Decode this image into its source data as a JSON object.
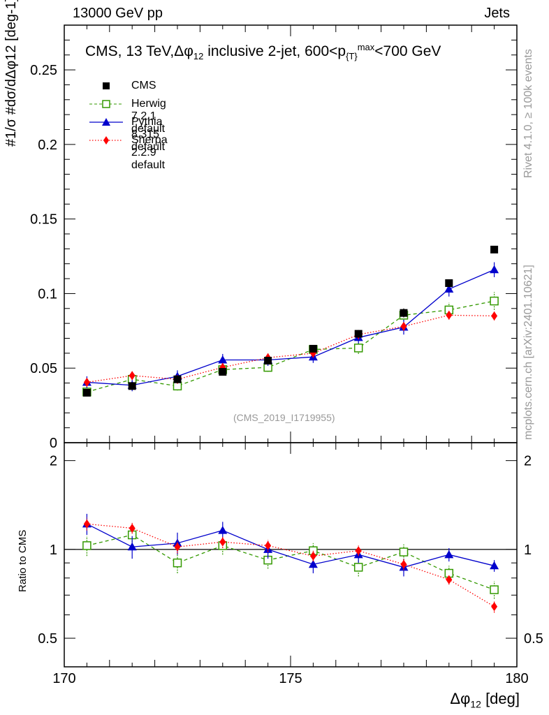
{
  "header": {
    "left": "13000 GeV pp",
    "right": "Jets"
  },
  "side_text": {
    "rivet": "Rivet 4.1.0, ≥ 100k events",
    "mcplots": "mcplots.cern.ch [arXiv:2401.10621]"
  },
  "watermark": "(CMS_2019_I1719955)",
  "chart_data": {
    "type": "scatter",
    "title": "CMS, 13 TeV,Δφ12 inclusive 2-jet, 600<p{T}max<700 GeV",
    "title_parts": {
      "a": "CMS, 13 TeV,Δφ",
      "a_sub": "12",
      "b": " inclusive 2-jet, 600<p",
      "b_sub": "{T}",
      "b_sup": "max",
      "c": "<700 GeV"
    },
    "xlabel": "Δφ12 [deg]",
    "xlabel_parts": {
      "main": "Δφ",
      "sub": "12",
      "unit": " [deg]"
    },
    "ylabel": "#1/σ #dσ/dΔφ12 [deg-1]",
    "ylabel_ratio": "Ratio to CMS",
    "xlim": [
      170,
      180
    ],
    "ylim": [
      0,
      0.28
    ],
    "ratio_ylim": [
      0.4,
      2.3
    ],
    "x_ticks": [
      "170",
      "175",
      "180"
    ],
    "y_ticks": [
      "0",
      "0.05",
      "0.1",
      "0.15",
      "0.2",
      "0.25"
    ],
    "ratio_y_ticks": [
      "0.5",
      "1",
      "2"
    ],
    "x": [
      170.5,
      171.5,
      172.5,
      173.5,
      174.5,
      175.5,
      176.5,
      177.5,
      178.5,
      179.5
    ],
    "series": [
      {
        "name": "CMS",
        "color": "#000000",
        "marker": "square",
        "line": "none",
        "values": [
          0.0335,
          0.038,
          0.0425,
          0.0475,
          0.055,
          0.063,
          0.073,
          0.087,
          0.107,
          0.1295
        ],
        "errors": [
          0.002,
          0.0015,
          0.0015,
          0.002,
          0.002,
          0.002,
          0.0025,
          0.003,
          0.0025,
          0.002
        ],
        "ratio": [
          1.0,
          1.0,
          1.0,
          1.0,
          1.0,
          1.0,
          1.0,
          1.0,
          1.0,
          1.0
        ],
        "ratio_errors": [
          0,
          0,
          0,
          0,
          0,
          0,
          0,
          0,
          0,
          0
        ]
      },
      {
        "name": "Herwig 7.2.1 default",
        "color": "#339900",
        "marker": "open-square",
        "line": "dashed",
        "values": [
          0.034,
          0.0425,
          0.038,
          0.049,
          0.0505,
          0.0625,
          0.0635,
          0.0855,
          0.089,
          0.095
        ],
        "errors": [
          0.003,
          0.003,
          0.003,
          0.003,
          0.003,
          0.003,
          0.004,
          0.004,
          0.005,
          0.006
        ],
        "ratio": [
          1.03,
          1.12,
          0.9,
          1.03,
          0.92,
          0.99,
          0.87,
          0.98,
          0.83,
          0.73
        ],
        "ratio_errors": [
          0.08,
          0.08,
          0.07,
          0.07,
          0.06,
          0.06,
          0.06,
          0.06,
          0.05,
          0.05
        ]
      },
      {
        "name": "Pythia 8.315 default",
        "color": "#0000cc",
        "marker": "triangle",
        "line": "solid",
        "values": [
          0.0405,
          0.0385,
          0.0445,
          0.0555,
          0.0555,
          0.0575,
          0.0705,
          0.0775,
          0.103,
          0.116
        ],
        "errors": [
          0.004,
          0.004,
          0.004,
          0.004,
          0.004,
          0.004,
          0.004,
          0.005,
          0.005,
          0.005
        ],
        "ratio": [
          1.22,
          1.02,
          1.05,
          1.16,
          1.0,
          0.89,
          0.96,
          0.87,
          0.96,
          0.88
        ],
        "ratio_errors": [
          0.1,
          0.09,
          0.09,
          0.08,
          0.07,
          0.06,
          0.06,
          0.06,
          0.05,
          0.04
        ]
      },
      {
        "name": "Sherpa 2.2.9 default",
        "color": "#ff0000",
        "marker": "diamond",
        "line": "dotted",
        "values": [
          0.0405,
          0.045,
          0.0425,
          0.0505,
          0.057,
          0.06,
          0.0725,
          0.078,
          0.0855,
          0.085
        ],
        "errors": [
          0.003,
          0.003,
          0.003,
          0.003,
          0.003,
          0.003,
          0.003,
          0.003,
          0.003,
          0.003
        ],
        "ratio": [
          1.22,
          1.18,
          1.02,
          1.06,
          1.03,
          0.95,
          0.99,
          0.89,
          0.79,
          0.64
        ],
        "ratio_errors": [
          0.06,
          0.05,
          0.05,
          0.05,
          0.05,
          0.04,
          0.04,
          0.04,
          0.03,
          0.03
        ]
      }
    ],
    "legend_position": "top-left"
  }
}
